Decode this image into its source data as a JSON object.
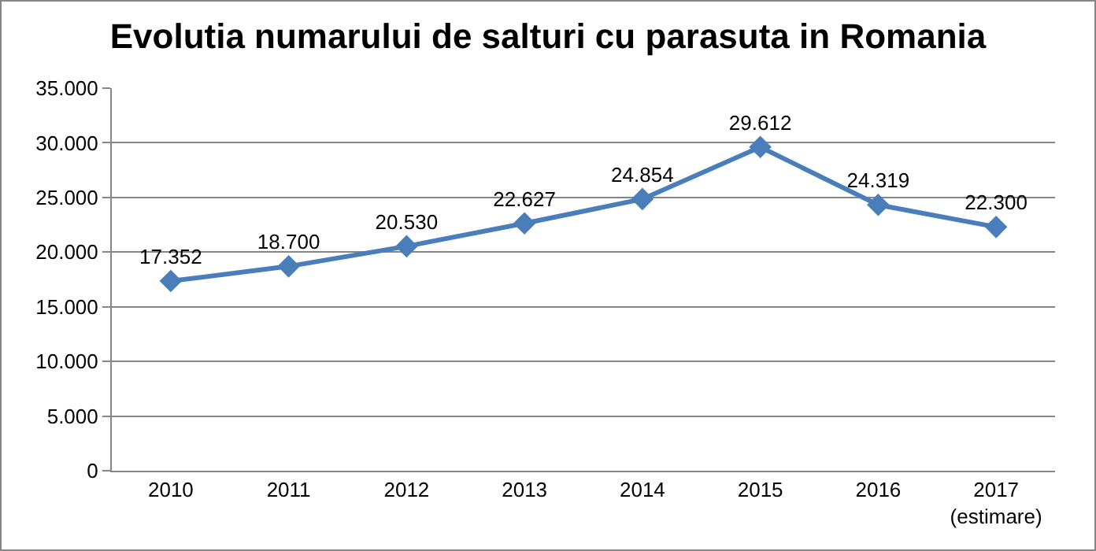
{
  "chart_data": {
    "type": "line",
    "title": "Evolutia numarului de salturi cu parasuta in Romania",
    "categories": [
      "2010",
      "2011",
      "2012",
      "2013",
      "2014",
      "2015",
      "2016",
      "2017\n(estimare)"
    ],
    "series": [
      {
        "color": "#4a7ebb",
        "values": [
          17352,
          18700,
          20530,
          22627,
          24854,
          29612,
          24319,
          22300
        ],
        "value_labels": [
          "17.352",
          "18.700",
          "20.530",
          "22.627",
          "24.854",
          "29.612",
          "24.319",
          "22.300"
        ]
      }
    ],
    "ylim": [
      0,
      35000
    ],
    "yticks": [
      {
        "value": 0,
        "label": "0"
      },
      {
        "value": 5000,
        "label": "5.000"
      },
      {
        "value": 10000,
        "label": "10.000"
      },
      {
        "value": 15000,
        "label": "15.000"
      },
      {
        "value": 20000,
        "label": "20.000"
      },
      {
        "value": 25000,
        "label": "25.000"
      },
      {
        "value": 30000,
        "label": "30.000"
      },
      {
        "value": 35000,
        "label": "35.000"
      }
    ],
    "grid": "y",
    "legend": false,
    "marker": "diamond",
    "line_style": "solid"
  }
}
